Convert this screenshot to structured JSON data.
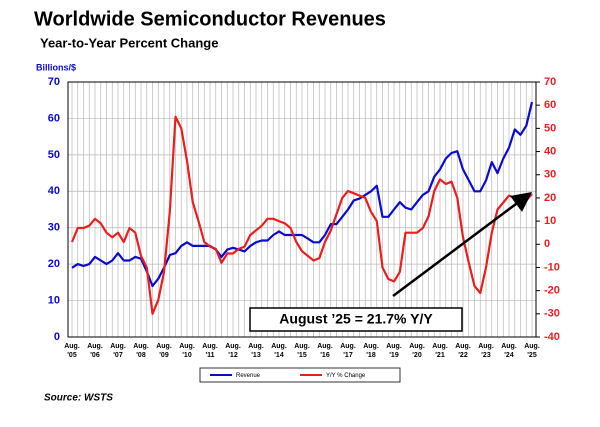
{
  "chart_data": {
    "type": "line",
    "title": "Worldwide Semiconductor Revenues",
    "subtitle": "Year-to-Year Percent Change",
    "y_label": "Billions/$",
    "source": "Source: WSTS",
    "annotation": "August ’25 = 21.7% Y/Y",
    "legend": "bottom",
    "grid": true,
    "categories": [
      [
        "Aug.",
        "'05"
      ],
      null,
      null,
      null,
      [
        "Aug.",
        "'06"
      ],
      null,
      null,
      null,
      [
        "Aug.",
        "'07"
      ],
      null,
      null,
      null,
      [
        "Aug.",
        "'08"
      ],
      null,
      null,
      null,
      [
        "Aug.",
        "'09"
      ],
      null,
      null,
      null,
      [
        "Aug.",
        "'10"
      ],
      null,
      null,
      null,
      [
        "Aug.",
        "'11"
      ],
      null,
      null,
      null,
      [
        "Aug.",
        "'12"
      ],
      null,
      null,
      null,
      [
        "Aug.",
        "'13"
      ],
      null,
      null,
      null,
      [
        "Aug.",
        "'14"
      ],
      null,
      null,
      null,
      [
        "Aug.",
        "'15"
      ],
      null,
      null,
      null,
      [
        "Aug.",
        "'16"
      ],
      null,
      null,
      null,
      [
        "Aug.",
        "'17"
      ],
      null,
      null,
      null,
      [
        "Aug.",
        "'18"
      ],
      null,
      null,
      null,
      [
        "Aug.",
        "'19"
      ],
      null,
      null,
      null,
      [
        "Aug.",
        "'20"
      ],
      null,
      null,
      null,
      [
        "Aug.",
        "'21"
      ],
      null,
      null,
      null,
      [
        "Aug.",
        "'22"
      ],
      null,
      null,
      null,
      [
        "Aug.",
        "'23"
      ],
      null,
      null,
      null,
      [
        "Aug.",
        "'24"
      ],
      null,
      null,
      null,
      [
        "Aug.",
        "'25"
      ]
    ],
    "ylim": [
      0,
      70
    ],
    "yticks": [
      0,
      10,
      20,
      30,
      40,
      50,
      60,
      70
    ],
    "y2lim": [
      -40,
      70
    ],
    "y2ticks": [
      -40,
      -30,
      -20,
      -10,
      0,
      10,
      20,
      30,
      40,
      50,
      60,
      70
    ],
    "series": [
      {
        "name": "Revenue",
        "color": "#0a0ad0",
        "values": [
          19,
          20,
          19.5,
          20,
          22,
          21,
          20,
          21,
          23,
          21,
          21,
          22,
          21.5,
          18,
          14,
          16,
          19,
          22.5,
          23,
          25,
          26,
          25,
          25,
          25,
          25,
          24,
          22,
          24,
          24.5,
          24,
          23.5,
          25,
          26,
          26.5,
          26.5,
          28,
          29,
          28,
          28,
          28,
          28,
          27,
          26,
          26,
          28,
          31,
          31,
          33,
          35,
          37.5,
          38,
          39,
          40,
          41.5,
          33,
          33,
          35,
          37,
          35.5,
          35,
          37,
          39,
          40,
          44,
          46,
          49,
          50.5,
          51,
          46,
          43,
          40,
          40,
          43,
          48,
          45,
          49,
          52,
          57,
          55.5,
          58,
          64.5
        ]
      },
      {
        "name": "Y/Y % Change",
        "color": "#ee1c1c",
        "axis": "y2",
        "values": [
          1,
          7,
          7,
          8,
          11,
          9,
          5,
          3,
          5,
          1,
          7,
          5,
          -5,
          -10,
          -30,
          -24,
          -12,
          14,
          55,
          50,
          36,
          18,
          10,
          1,
          -1,
          -2,
          -8,
          -4,
          -4,
          -2,
          -1,
          4,
          6,
          8,
          11,
          11,
          10,
          9,
          7,
          1,
          -3,
          -5,
          -7,
          -6,
          1,
          6,
          13,
          20,
          23,
          22,
          21,
          20,
          14,
          10,
          -10,
          -15,
          -16,
          -12,
          5,
          5,
          5,
          7,
          12,
          23,
          28,
          26,
          27,
          20,
          3,
          -8,
          -18,
          -21,
          -10,
          5,
          15,
          18,
          21,
          20,
          18,
          19,
          21.7
        ]
      }
    ]
  }
}
